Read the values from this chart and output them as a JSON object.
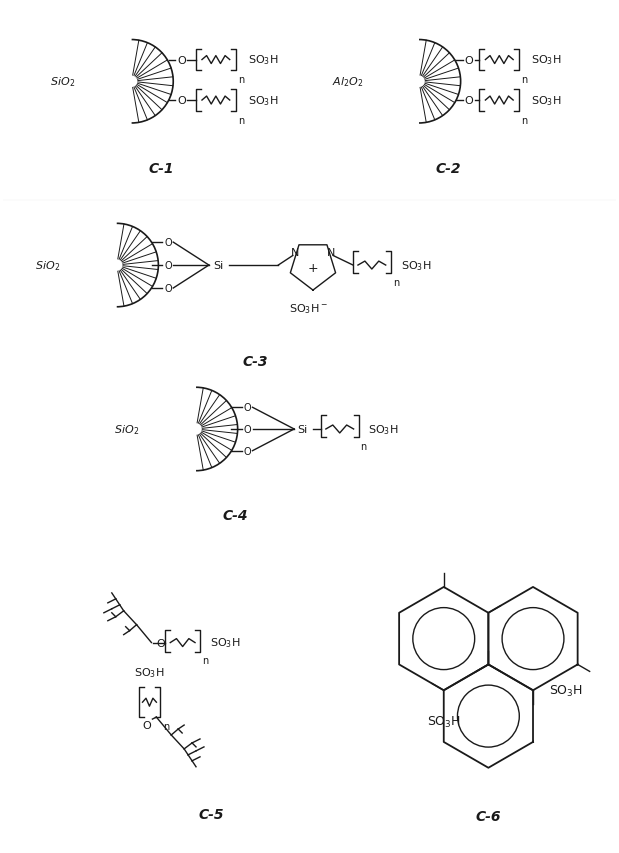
{
  "bg_color": "#ffffff",
  "line_color": "#1a1a1a",
  "labels": {
    "C1": "C-1",
    "C2": "C-2",
    "C3": "C-3",
    "C4": "C-4",
    "C5": "C-5",
    "C6": "C-6"
  }
}
